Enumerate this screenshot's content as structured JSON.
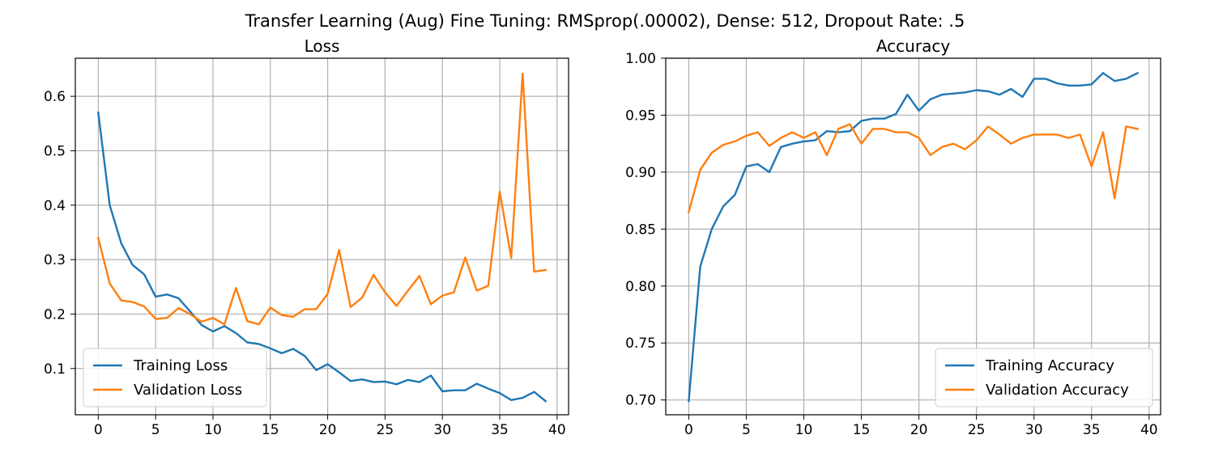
{
  "figure": {
    "suptitle": "Transfer Learning (Aug) Fine Tuning: RMSprop(.00002), Dense: 512, Dropout Rate: .5"
  },
  "colors": {
    "training": "#1f77b4",
    "validation": "#ff7f0e",
    "grid": "#b0b0b0"
  },
  "chart_data": [
    {
      "type": "line",
      "title": "Loss",
      "xlim": [
        -2,
        41
      ],
      "ylim": [
        0.015,
        0.67
      ],
      "xticks": [
        0,
        5,
        10,
        15,
        20,
        25,
        30,
        35,
        40
      ],
      "yticks": [
        0.1,
        0.2,
        0.3,
        0.4,
        0.5,
        0.6
      ],
      "ytick_labels": [
        "0.1",
        "0.2",
        "0.3",
        "0.4",
        "0.5",
        "0.6"
      ],
      "grid": true,
      "legend_position": "lower-left",
      "x": [
        0,
        1,
        2,
        3,
        4,
        5,
        6,
        7,
        8,
        9,
        10,
        11,
        12,
        13,
        14,
        15,
        16,
        17,
        18,
        19,
        20,
        21,
        22,
        23,
        24,
        25,
        26,
        27,
        28,
        29,
        30,
        31,
        32,
        33,
        34,
        35,
        36,
        37,
        38,
        39
      ],
      "series": [
        {
          "name": "Training Loss",
          "color": "#1f77b4",
          "values": [
            0.57,
            0.4,
            0.33,
            0.29,
            0.273,
            0.232,
            0.236,
            0.229,
            0.205,
            0.18,
            0.168,
            0.178,
            0.165,
            0.148,
            0.145,
            0.137,
            0.128,
            0.136,
            0.123,
            0.097,
            0.108,
            0.093,
            0.077,
            0.08,
            0.075,
            0.076,
            0.071,
            0.079,
            0.075,
            0.087,
            0.058,
            0.06,
            0.06,
            0.072,
            0.063,
            0.055,
            0.042,
            0.046,
            0.057,
            0.04
          ]
        },
        {
          "name": "Validation Loss",
          "color": "#ff7f0e",
          "values": [
            0.34,
            0.256,
            0.225,
            0.222,
            0.214,
            0.191,
            0.193,
            0.211,
            0.2,
            0.186,
            0.193,
            0.181,
            0.248,
            0.187,
            0.181,
            0.212,
            0.198,
            0.195,
            0.209,
            0.209,
            0.237,
            0.318,
            0.213,
            0.23,
            0.272,
            0.24,
            0.215,
            0.243,
            0.27,
            0.218,
            0.234,
            0.24,
            0.304,
            0.243,
            0.252,
            0.425,
            0.303,
            0.642,
            0.278,
            0.281
          ]
        }
      ]
    },
    {
      "type": "line",
      "title": "Accuracy",
      "xlim": [
        -2,
        41
      ],
      "ylim": [
        0.687,
        1.0
      ],
      "xticks": [
        0,
        5,
        10,
        15,
        20,
        25,
        30,
        35,
        40
      ],
      "yticks": [
        0.7,
        0.75,
        0.8,
        0.85,
        0.9,
        0.95,
        1.0
      ],
      "ytick_labels": [
        "0.70",
        "0.75",
        "0.80",
        "0.85",
        "0.90",
        "0.95",
        "1.00"
      ],
      "grid": true,
      "legend_position": "lower-right",
      "x": [
        0,
        1,
        2,
        3,
        4,
        5,
        6,
        7,
        8,
        9,
        10,
        11,
        12,
        13,
        14,
        15,
        16,
        17,
        18,
        19,
        20,
        21,
        22,
        23,
        24,
        25,
        26,
        27,
        28,
        29,
        30,
        31,
        32,
        33,
        34,
        35,
        36,
        37,
        38,
        39
      ],
      "series": [
        {
          "name": "Training Accuracy",
          "color": "#1f77b4",
          "values": [
            0.699,
            0.817,
            0.85,
            0.87,
            0.88,
            0.905,
            0.907,
            0.9,
            0.922,
            0.925,
            0.927,
            0.928,
            0.936,
            0.935,
            0.936,
            0.945,
            0.947,
            0.947,
            0.951,
            0.968,
            0.954,
            0.964,
            0.968,
            0.969,
            0.97,
            0.972,
            0.971,
            0.968,
            0.973,
            0.966,
            0.982,
            0.982,
            0.978,
            0.976,
            0.976,
            0.977,
            0.987,
            0.98,
            0.982,
            0.987
          ]
        },
        {
          "name": "Validation Accuracy",
          "color": "#ff7f0e",
          "values": [
            0.865,
            0.902,
            0.917,
            0.924,
            0.927,
            0.932,
            0.935,
            0.923,
            0.93,
            0.935,
            0.93,
            0.935,
            0.915,
            0.938,
            0.942,
            0.925,
            0.938,
            0.938,
            0.935,
            0.935,
            0.93,
            0.915,
            0.922,
            0.925,
            0.92,
            0.928,
            0.94,
            0.933,
            0.925,
            0.93,
            0.933,
            0.933,
            0.933,
            0.93,
            0.933,
            0.905,
            0.935,
            0.877,
            0.94,
            0.938
          ]
        }
      ]
    }
  ]
}
